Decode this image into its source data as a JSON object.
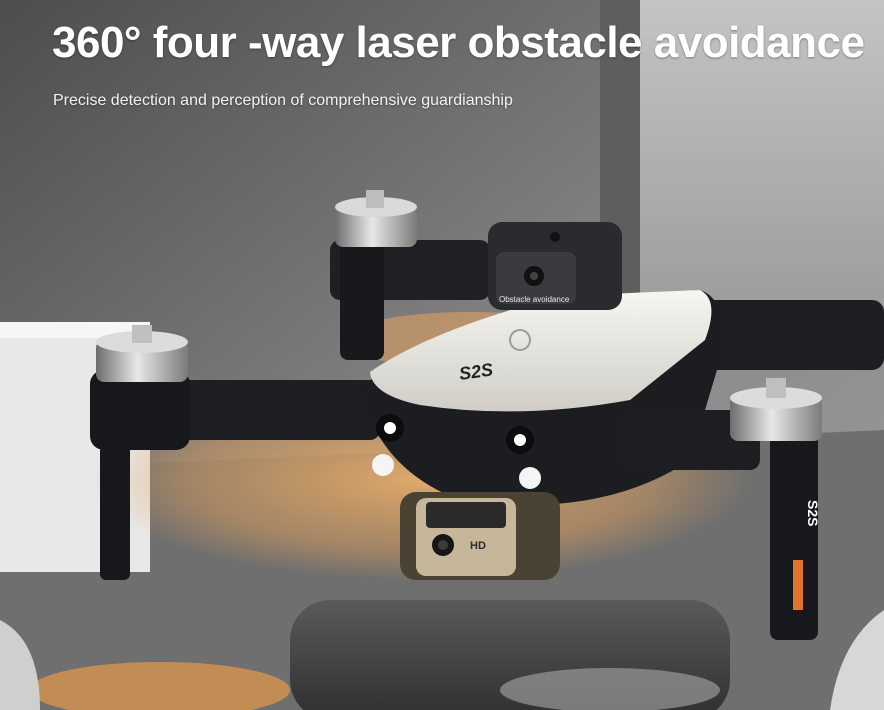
{
  "headline": "360° four -way laser obstacle avoidance",
  "subheadline": "Precise detection and perception of comprehensive guardianship",
  "drone": {
    "sensor_label": "Obstacle avoidance",
    "top_shell_mark": "S2S",
    "side_mark": "S2S",
    "camera_badge": "HD"
  },
  "colors": {
    "laser_glow": "#e9a55a",
    "shell": "#ecebe6",
    "body_dark": "#1f2023",
    "text": "#ffffff"
  }
}
